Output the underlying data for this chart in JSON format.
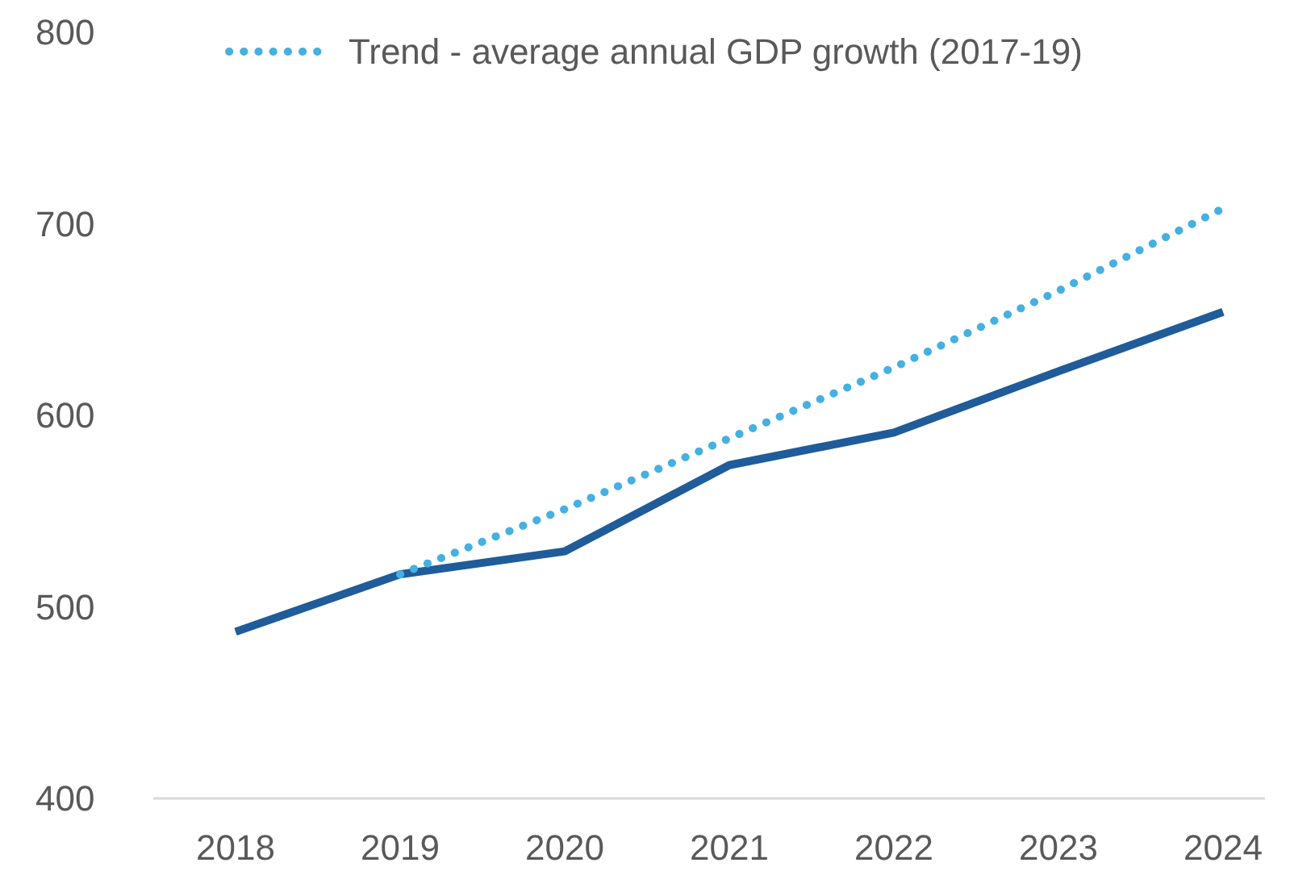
{
  "chart_data": {
    "type": "line",
    "categories": [
      "2018",
      "2019",
      "2020",
      "2021",
      "2022",
      "2023",
      "2024"
    ],
    "series": [
      {
        "color": "#1f5c99",
        "values": [
          487,
          517,
          529,
          574,
          591,
          623,
          654
        ],
        "line_style": "solid"
      },
      {
        "name": "Trend - average annual GDP growth (2017-19)",
        "color": "#45b0e1",
        "values": [
          null,
          517,
          551,
          588,
          625,
          665,
          708
        ],
        "line_style": "dotted"
      }
    ],
    "ylim": [
      400,
      800
    ],
    "yticks": [
      400,
      500,
      600,
      700,
      800
    ],
    "grid": false,
    "legend": "top"
  }
}
